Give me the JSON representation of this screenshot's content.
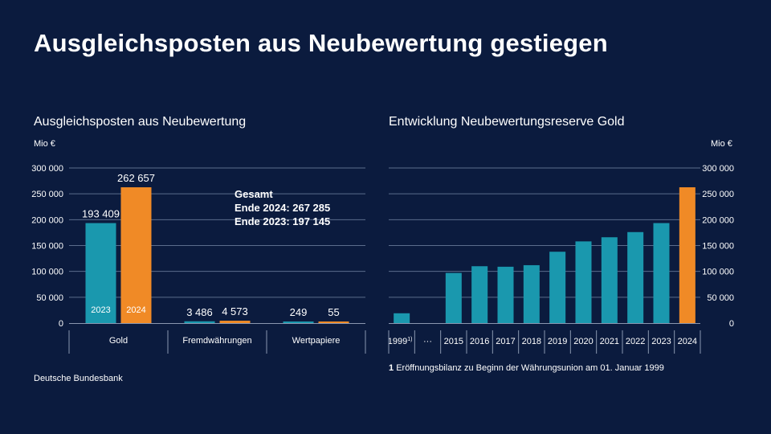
{
  "title": "Ausgleichsposten aus Neubewertung gestiegen",
  "source": "Deutsche Bundesbank",
  "colors": {
    "background": "#0b1b3e",
    "teal": "#1a98ae",
    "orange": "#f08a26",
    "grid": "#5b6d8c"
  },
  "chart_data": [
    {
      "type": "bar",
      "title": "Ausgleichsposten aus Neubewertung",
      "ylabel": "Mio €",
      "ylim": [
        0,
        300000
      ],
      "yticks": [
        "0",
        "50 000",
        "100 000",
        "150 000",
        "200 000",
        "250 000",
        "300 000"
      ],
      "categories": [
        "Gold",
        "Fremdwährungen",
        "Wertpapiere"
      ],
      "series": [
        {
          "name": "2023",
          "color": "#1a98ae",
          "values": [
            193409,
            3486,
            249
          ],
          "labels": [
            "193 409",
            "3 486",
            "249"
          ]
        },
        {
          "name": "2024",
          "color": "#f08a26",
          "values": [
            262657,
            4573,
            55
          ],
          "labels": [
            "262 657",
            "4 573",
            "55"
          ]
        }
      ],
      "annotation": {
        "heading": "Gesamt",
        "line1": "Ende 2024: 267 285",
        "line2": "Ende 2023: 197 145"
      }
    },
    {
      "type": "bar",
      "title": "Entwicklung Neubewertungsreserve Gold",
      "ylabel": "Mio €",
      "ylim": [
        0,
        300000
      ],
      "yticks": [
        "0",
        "50 000",
        "100 000",
        "150 000",
        "200 000",
        "250 000",
        "300 000"
      ],
      "categories": [
        "1999",
        "···",
        "2015",
        "2016",
        "2017",
        "2018",
        "2019",
        "2020",
        "2021",
        "2022",
        "2023",
        "2024"
      ],
      "values": [
        19000,
        null,
        97000,
        110000,
        109000,
        112000,
        138000,
        158000,
        166000,
        176000,
        193409,
        262657
      ],
      "highlight": "2024",
      "footnote_mark": "1)",
      "footnote_number": "1",
      "footnote_text": "Eröffnungsbilanz zu Beginn der Währungsunion am 01. Januar 1999"
    }
  ]
}
